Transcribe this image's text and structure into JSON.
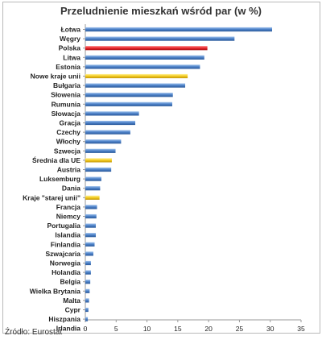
{
  "chart_data": {
    "type": "bar",
    "orientation": "horizontal",
    "title": "Przeludnienie mieszkań wśród par (w %)",
    "source": "Źródło: Eurostat",
    "xlabel": "",
    "ylabel": "",
    "xlim": [
      0,
      35
    ],
    "x_ticks": [
      0,
      5,
      10,
      15,
      20,
      25,
      30,
      35
    ],
    "grid": false,
    "legend": "none",
    "colors": {
      "default": "#4a7fc6",
      "highlight_red": "#e8262a",
      "highlight_yellow": "#f3cb1d",
      "axis": "#9a9a9a",
      "text": "#222222"
    },
    "categories": [
      "Łotwa",
      "Węgry",
      "Polska",
      "Litwa",
      "Estonia",
      "Nowe kraje unii",
      "Bułgaria",
      "Słowenia",
      "Rumunia",
      "Słowacja",
      "Gracja",
      "Czechy",
      "Włochy",
      "Szwecja",
      "Średnia dla UE",
      "Austria",
      "Luksemburg",
      "Dania",
      "Kraje \"starej unii\"",
      "Francja",
      "Niemcy",
      "Portugalia",
      "Islandia",
      "Finlandia",
      "Szwajcaria",
      "Norwegia",
      "Holandia",
      "Belgia",
      "Wielka Brytania",
      "Malta",
      "Cypr",
      "Hiszpania",
      "Irlandia"
    ],
    "values": [
      30.3,
      24.2,
      19.8,
      19.3,
      18.6,
      16.6,
      16.2,
      14.2,
      14.1,
      8.7,
      8.1,
      7.3,
      5.8,
      4.9,
      4.3,
      4.2,
      2.6,
      2.4,
      2.3,
      1.9,
      1.8,
      1.7,
      1.7,
      1.5,
      1.3,
      0.9,
      0.9,
      0.8,
      0.7,
      0.6,
      0.5,
      0.4,
      0.0
    ],
    "highlights": {
      "Polska": "red",
      "Nowe kraje unii": "yellow",
      "Średnia dla UE": "yellow",
      "Kraje \"starej unii\"": "yellow"
    }
  }
}
